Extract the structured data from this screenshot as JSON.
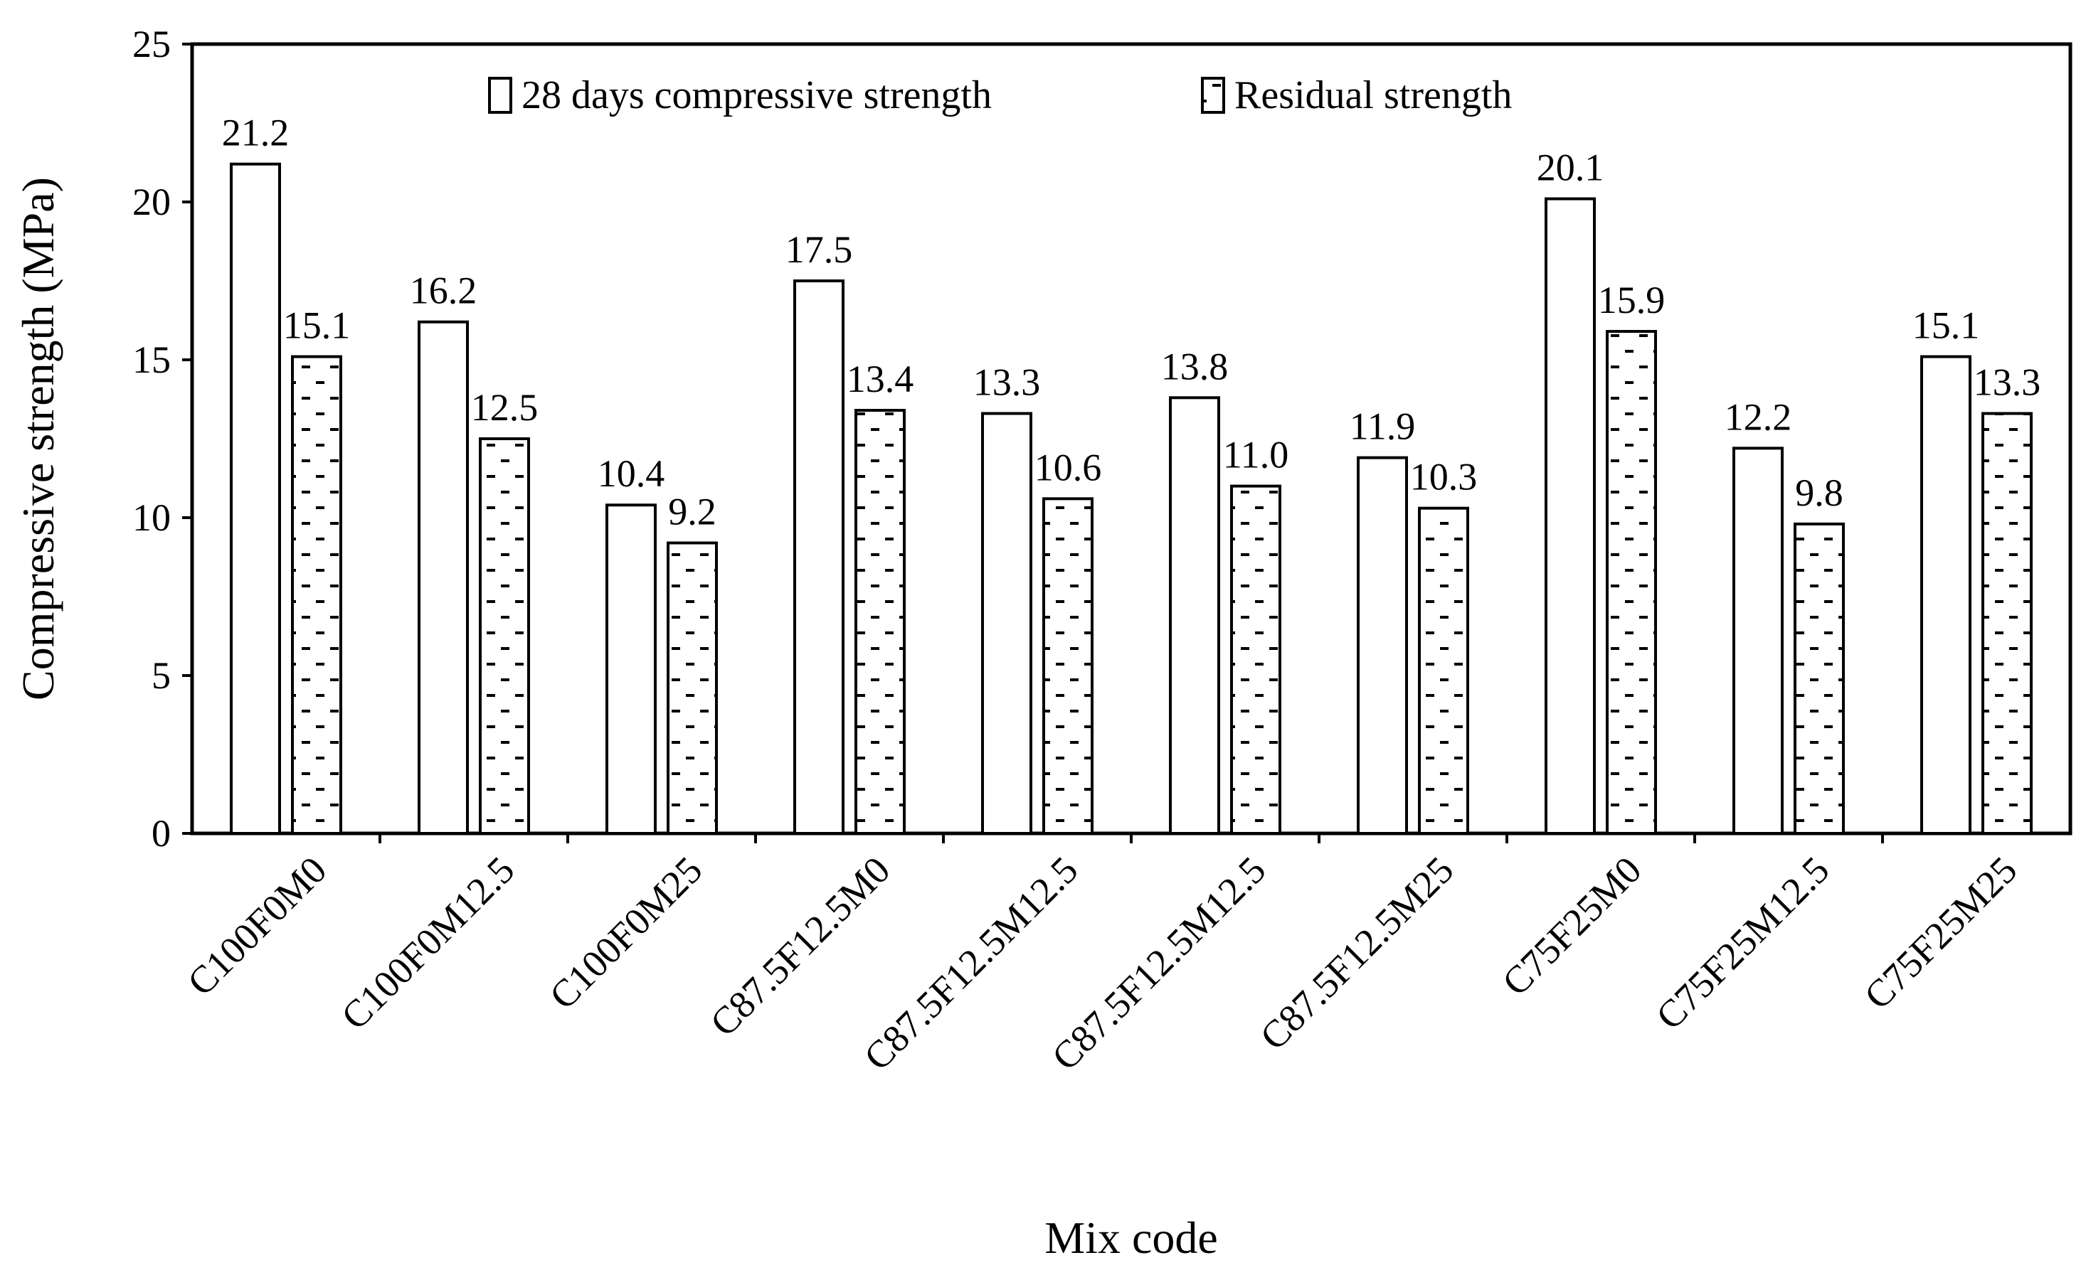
{
  "chart_data": {
    "type": "bar",
    "title": "",
    "xlabel": "Mix code",
    "ylabel": "Compressive strength (MPa)",
    "ylim": [
      0,
      25
    ],
    "yticks": [
      0,
      5,
      10,
      15,
      20,
      25
    ],
    "grid": false,
    "legend_position": "top",
    "categories": [
      "C100F0M0",
      "C100F0M12.5",
      "C100F0M25",
      "C87.5F12.5M0",
      "C87.5F12.5M12.5",
      "C87.5F12.5M12.5",
      "C87.5F12.5M25",
      "C75F25M0",
      "C75F25M12.5",
      "C75F25M25"
    ],
    "series": [
      {
        "name": "28 days compressive strength",
        "pattern": "plain",
        "values": [
          21.2,
          16.2,
          10.4,
          17.5,
          13.3,
          13.8,
          11.9,
          20.1,
          12.2,
          15.1
        ],
        "labels": [
          "21.2",
          "16.2",
          "10.4",
          "17.5",
          "13.3",
          "13.8",
          "11.9",
          "20.1",
          "12.2",
          "15.1"
        ]
      },
      {
        "name": "Residual strength",
        "pattern": "dashed-hatch",
        "values": [
          15.1,
          12.5,
          9.2,
          13.4,
          10.6,
          11.0,
          10.3,
          15.9,
          9.8,
          13.3
        ],
        "labels": [
          "15.1",
          "12.5",
          "9.2",
          "13.4",
          "10.6",
          "11.0",
          "10.3",
          "15.9",
          "9.8",
          "13.3"
        ]
      }
    ],
    "colors": {
      "bar_fill": "#ffffff",
      "bar_stroke": "#000000",
      "axis": "#000000"
    }
  }
}
